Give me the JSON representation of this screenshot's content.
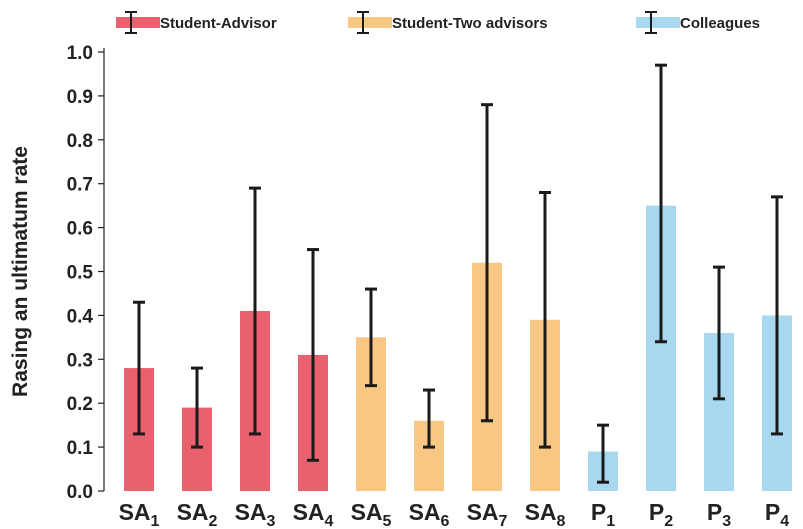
{
  "chart_data": {
    "type": "bar",
    "ylabel": "Rasing an ultimatum rate",
    "ylim": [
      0,
      1.0
    ],
    "yticks": [
      "0.0",
      "0.1",
      "0.2",
      "0.3",
      "0.4",
      "0.5",
      "0.6",
      "0.7",
      "0.8",
      "0.9",
      "1.0"
    ],
    "grid": false,
    "legend_position": "top",
    "legend": [
      {
        "label": "Student-Advisor",
        "color": "#E9606F"
      },
      {
        "label": "Student-Two advisors",
        "color": "#F9C784"
      },
      {
        "label": "Colleagues",
        "color": "#A8D8EF"
      }
    ],
    "bars": [
      {
        "base": "SA",
        "sub": "1",
        "group": 0,
        "value": 0.28,
        "err_low": 0.13,
        "err_high": 0.43
      },
      {
        "base": "SA",
        "sub": "2",
        "group": 0,
        "value": 0.19,
        "err_low": 0.1,
        "err_high": 0.28
      },
      {
        "base": "SA",
        "sub": "3",
        "group": 0,
        "value": 0.41,
        "err_low": 0.13,
        "err_high": 0.69
      },
      {
        "base": "SA",
        "sub": "4",
        "group": 0,
        "value": 0.31,
        "err_low": 0.07,
        "err_high": 0.55
      },
      {
        "base": "SA",
        "sub": "5",
        "group": 1,
        "value": 0.35,
        "err_low": 0.24,
        "err_high": 0.46
      },
      {
        "base": "SA",
        "sub": "6",
        "group": 1,
        "value": 0.16,
        "err_low": 0.1,
        "err_high": 0.23
      },
      {
        "base": "SA",
        "sub": "7",
        "group": 1,
        "value": 0.52,
        "err_low": 0.16,
        "err_high": 0.88
      },
      {
        "base": "SA",
        "sub": "8",
        "group": 1,
        "value": 0.39,
        "err_low": 0.1,
        "err_high": 0.68
      },
      {
        "base": "P",
        "sub": "1",
        "group": 2,
        "value": 0.09,
        "err_low": 0.02,
        "err_high": 0.15
      },
      {
        "base": "P",
        "sub": "2",
        "group": 2,
        "value": 0.65,
        "err_low": 0.34,
        "err_high": 0.97
      },
      {
        "base": "P",
        "sub": "3",
        "group": 2,
        "value": 0.36,
        "err_low": 0.21,
        "err_high": 0.51
      },
      {
        "base": "P",
        "sub": "4",
        "group": 2,
        "value": 0.4,
        "err_low": 0.13,
        "err_high": 0.67
      }
    ]
  }
}
